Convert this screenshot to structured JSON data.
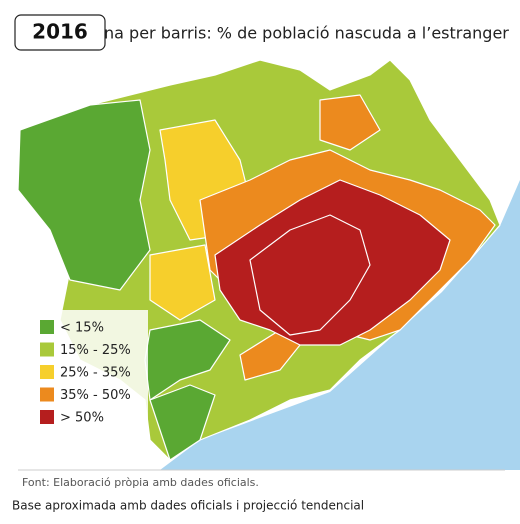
{
  "badge": "2016",
  "title": "na per barris: % de població nascuda a l’estranger",
  "legend": [
    {
      "label": "< 15%",
      "color": "#5aa833"
    },
    {
      "label": "15% - 25%",
      "color": "#a9c93a"
    },
    {
      "label": "25% - 35%",
      "color": "#f6cf2c"
    },
    {
      "label": "35% - 50%",
      "color": "#ec8a1e"
    },
    {
      "label": "> 50%",
      "color": "#b51e1e"
    }
  ],
  "source": "Font: Elaboració pròpia amb dades oficials.",
  "note": "Base aproximada amb dades oficials i projecció tendencial"
}
